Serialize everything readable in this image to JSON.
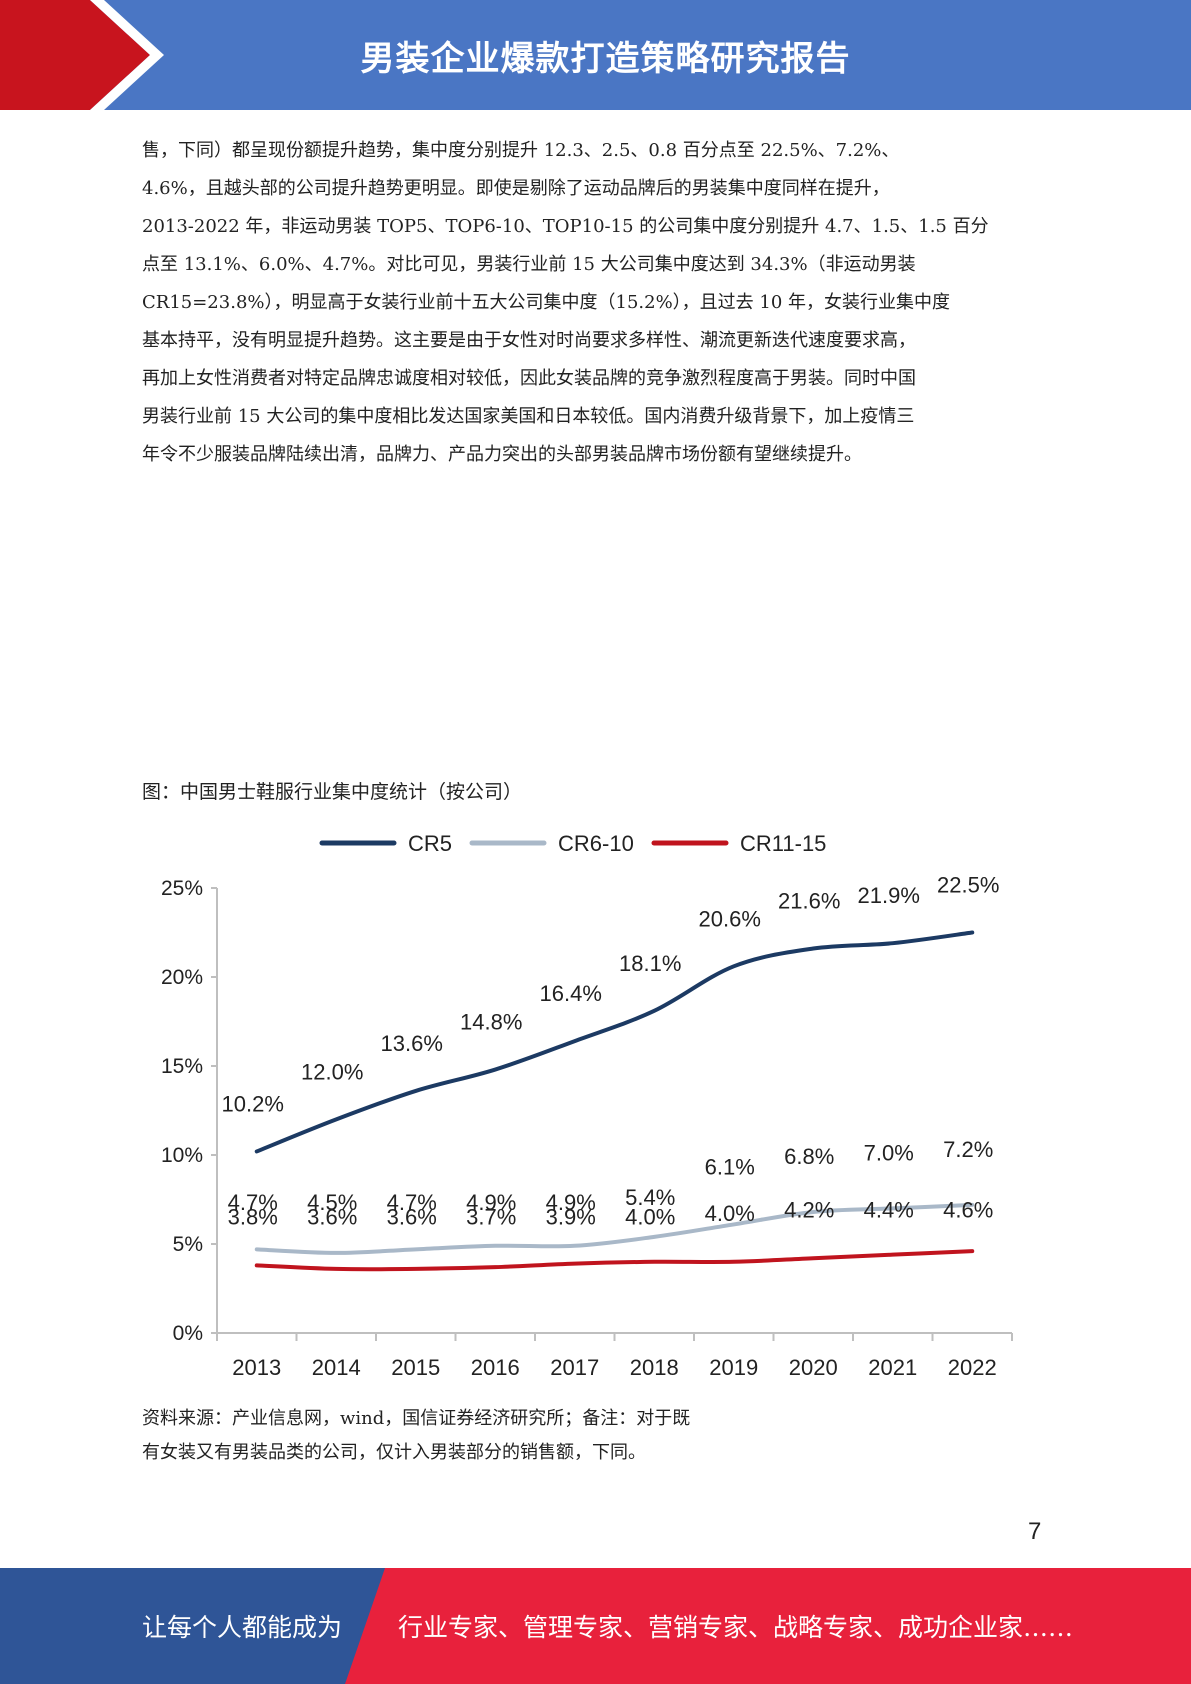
{
  "header": {
    "title": "男装企业爆款打造策略研究报告"
  },
  "body_paragraphs": [
    "售，下同）都呈现份额提升趋势，集中度分别提升 12.3、2.5、0.8 百分点至 22.5%、7.2%、",
    "4.6%，且越头部的公司提升趋势更明显。即使是剔除了运动品牌后的男装集中度同样在提升，",
    "2013-2022 年，非运动男装 TOP5、TOP6-10、TOP10-15 的公司集中度分别提升 4.7、1.5、1.5 百分",
    "点至 13.1%、6.0%、4.7%。对比可见，男装行业前 15 大公司集中度达到 34.3%（非运动男装",
    "CR15=23.8%），明显高于女装行业前十五大公司集中度（15.2%），且过去 10 年，女装行业集中度",
    "基本持平，没有明显提升趋势。这主要是由于女性对时尚要求多样性、潮流更新迭代速度要求高，",
    "再加上女性消费者对特定品牌忠诚度相对较低，因此女装品牌的竞争激烈程度高于男装。同时中国",
    "男装行业前 15 大公司的集中度相比发达国家美国和日本较低。国内消费升级背景下，加上疫情三",
    "年令不少服装品牌陆续出清，品牌力、产品力突出的头部男装品牌市场份额有望继续提升。"
  ],
  "figure": {
    "caption": "图：中国男士鞋服行业集中度统计（按公司）",
    "source_line1": "资料来源：产业信息网，wind，国信证券经济研究所；备注：对于既",
    "source_line2": "有女装又有男装品类的公司，仅计入男装部分的销售额，下同。"
  },
  "chart_data": {
    "type": "line",
    "title": "",
    "xlabel": "",
    "ylabel": "",
    "legend_position": "top",
    "grid": false,
    "ylim": [
      0,
      25
    ],
    "y_ticks": [
      "0%",
      "5%",
      "10%",
      "15%",
      "20%",
      "25%"
    ],
    "categories": [
      "2013",
      "2014",
      "2015",
      "2016",
      "2017",
      "2018",
      "2019",
      "2020",
      "2021",
      "2022"
    ],
    "series": [
      {
        "name": "CR5",
        "color": "#1c3a63",
        "values": [
          10.2,
          12.0,
          13.6,
          14.8,
          16.4,
          18.1,
          20.6,
          21.6,
          21.9,
          22.5
        ],
        "labels": [
          "10.2%",
          "12.0%",
          "13.6%",
          "14.8%",
          "16.4%",
          "18.1%",
          "20.6%",
          "21.6%",
          "21.9%",
          "22.5%"
        ]
      },
      {
        "name": "CR6-10",
        "color": "#a9b8c8",
        "values": [
          4.7,
          4.5,
          4.7,
          4.9,
          4.9,
          5.4,
          6.1,
          6.8,
          7.0,
          7.2
        ],
        "labels": [
          "4.7%",
          "4.5%",
          "4.7%",
          "4.9%",
          "4.9%",
          "5.4%",
          "6.1%",
          "6.8%",
          "7.0%",
          "7.2%"
        ]
      },
      {
        "name": "CR11-15",
        "color": "#c0141e",
        "values": [
          3.8,
          3.6,
          3.6,
          3.7,
          3.9,
          4.0,
          4.0,
          4.2,
          4.4,
          4.6
        ],
        "labels": [
          "3.8%",
          "3.6%",
          "3.6%",
          "3.7%",
          "3.9%",
          "4.0%",
          "4.0%",
          "4.2%",
          "4.4%",
          "4.6%"
        ]
      }
    ]
  },
  "page_number": "7",
  "footer": {
    "left_text": "让每个人都能成为",
    "right_text": "行业专家、管理专家、营销专家、战略专家、成功企业家……"
  },
  "colors": {
    "header_blue": "#4a76c4",
    "accent_red": "#c8141e",
    "footer_red": "#e8213c",
    "footer_blue": "#2f5597"
  }
}
